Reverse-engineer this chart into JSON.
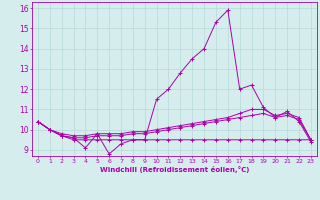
{
  "xlabel": "Windchill (Refroidissement éolien,°C)",
  "ylabel": "",
  "background_color": "#d5eeed",
  "line_color": "#aa00aa",
  "grid_color": "#b8d8d8",
  "xlim": [
    -0.5,
    23.5
  ],
  "ylim": [
    8.7,
    16.3
  ],
  "yticks": [
    9,
    10,
    11,
    12,
    13,
    14,
    15,
    16
  ],
  "xticks": [
    0,
    1,
    2,
    3,
    4,
    5,
    6,
    7,
    8,
    9,
    10,
    11,
    12,
    13,
    14,
    15,
    16,
    17,
    18,
    19,
    20,
    21,
    22,
    23
  ],
  "series": [
    {
      "x": [
        0,
        1,
        2,
        3,
        4,
        5,
        6,
        7,
        8,
        9,
        10,
        11,
        12,
        13,
        14,
        15,
        16,
        17,
        18,
        19,
        20,
        21,
        22,
        23
      ],
      "y": [
        10.4,
        10.0,
        9.7,
        9.6,
        9.1,
        9.8,
        8.8,
        9.3,
        9.5,
        9.5,
        11.5,
        12.0,
        12.8,
        13.5,
        14.0,
        15.3,
        15.9,
        12.0,
        12.2,
        11.1,
        10.6,
        10.9,
        10.4,
        9.4
      ]
    },
    {
      "x": [
        0,
        1,
        2,
        3,
        4,
        5,
        6,
        7,
        8,
        9,
        10,
        11,
        12,
        13,
        14,
        15,
        16,
        17,
        18,
        19,
        20,
        21,
        22,
        23
      ],
      "y": [
        10.4,
        10.0,
        9.8,
        9.7,
        9.7,
        9.8,
        9.8,
        9.8,
        9.9,
        9.9,
        10.0,
        10.1,
        10.2,
        10.3,
        10.4,
        10.5,
        10.6,
        10.8,
        11.0,
        11.0,
        10.7,
        10.8,
        10.6,
        9.5
      ]
    },
    {
      "x": [
        0,
        1,
        2,
        3,
        4,
        5,
        6,
        7,
        8,
        9,
        10,
        11,
        12,
        13,
        14,
        15,
        16,
        17,
        18,
        19,
        20,
        21,
        22,
        23
      ],
      "y": [
        10.4,
        10.0,
        9.7,
        9.6,
        9.6,
        9.7,
        9.7,
        9.7,
        9.8,
        9.8,
        9.9,
        10.0,
        10.1,
        10.2,
        10.3,
        10.4,
        10.5,
        10.6,
        10.7,
        10.8,
        10.6,
        10.7,
        10.5,
        9.5
      ]
    },
    {
      "x": [
        0,
        1,
        2,
        3,
        4,
        5,
        6,
        7,
        8,
        9,
        10,
        11,
        12,
        13,
        14,
        15,
        16,
        17,
        18,
        19,
        20,
        21,
        22,
        23
      ],
      "y": [
        10.4,
        10.0,
        9.7,
        9.5,
        9.5,
        9.5,
        9.5,
        9.5,
        9.5,
        9.5,
        9.5,
        9.5,
        9.5,
        9.5,
        9.5,
        9.5,
        9.5,
        9.5,
        9.5,
        9.5,
        9.5,
        9.5,
        9.5,
        9.5
      ]
    }
  ]
}
